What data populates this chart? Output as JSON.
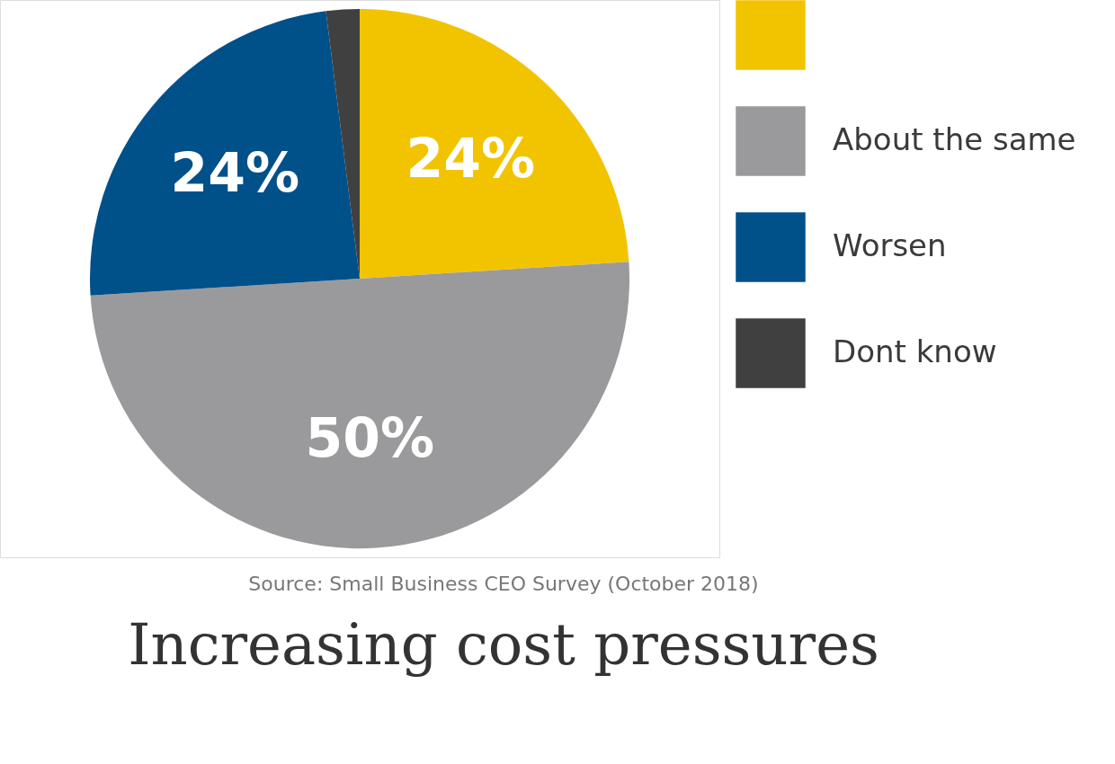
{
  "chart_data": {
    "type": "pie",
    "categories": [
      null,
      "About the same",
      "Worsen",
      "Dont know"
    ],
    "values": [
      24,
      50,
      24,
      2
    ],
    "colors": [
      "#f2c400",
      "#9a9a9c",
      "#00508a",
      "#404040"
    ],
    "value_labels": [
      "24%",
      "50%",
      "24%",
      null
    ],
    "legend": "right",
    "annotations": [
      "Source: Small Business CEO Survey (October 2018)",
      "Increasing cost pressures"
    ]
  }
}
